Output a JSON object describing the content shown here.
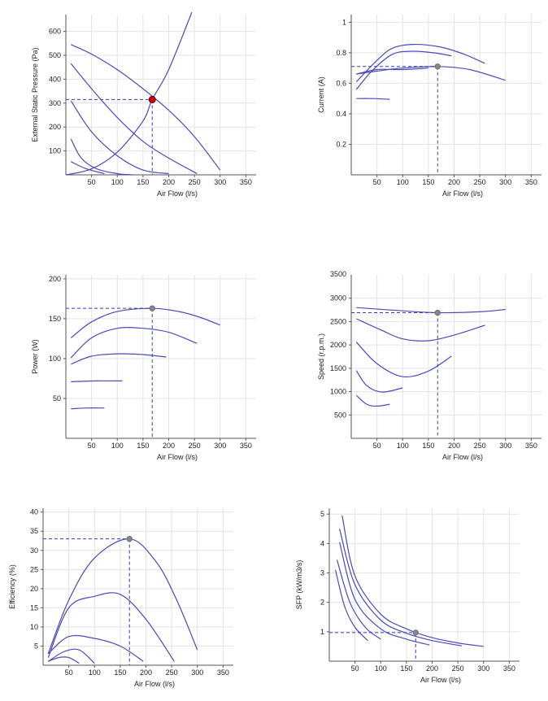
{
  "colors": {
    "curve": "#4a4ab8",
    "guide": "#2f3fbf",
    "grid": "#e4e4e4",
    "operating_point": "#d40000",
    "marker": "#888888"
  },
  "chart_data": [
    {
      "type": "line",
      "xlabel": "Air Flow (l/s)",
      "ylabel": "External Static Pressure (Pa)",
      "xlim": [
        0,
        370
      ],
      "ylim": [
        0,
        670
      ],
      "xticks": [
        50,
        100,
        150,
        200,
        250,
        300,
        350
      ],
      "yticks": [
        100,
        200,
        300,
        400,
        500,
        600
      ],
      "grid": true,
      "series": [
        {
          "values": [
            [
              10,
              545
            ],
            [
              50,
              505
            ],
            [
              100,
              440
            ],
            [
              150,
              360
            ],
            [
              200,
              270
            ],
            [
              250,
              160
            ],
            [
              300,
              20
            ]
          ]
        },
        {
          "values": [
            [
              10,
              465
            ],
            [
              50,
              360
            ],
            [
              100,
              240
            ],
            [
              150,
              140
            ],
            [
              200,
              70
            ],
            [
              255,
              5
            ]
          ]
        },
        {
          "values": [
            [
              10,
              310
            ],
            [
              50,
              180
            ],
            [
              100,
              80
            ],
            [
              150,
              20
            ],
            [
              200,
              5
            ]
          ]
        },
        {
          "values": [
            [
              10,
              150
            ],
            [
              30,
              70
            ],
            [
              60,
              25
            ],
            [
              100,
              5
            ],
            [
              130,
              0
            ]
          ]
        },
        {
          "values": [
            [
              10,
              55
            ],
            [
              40,
              25
            ],
            [
              75,
              5
            ]
          ]
        },
        {
          "values": [
            [
              0,
              0
            ],
            [
              50,
              25
            ],
            [
              100,
              95
            ],
            [
              150,
              225
            ],
            [
              168,
              315
            ],
            [
              200,
              440
            ],
            [
              245,
              680
            ]
          ]
        }
      ],
      "operating_point": {
        "x": 168,
        "y": 315,
        "style": "red"
      }
    },
    {
      "type": "line",
      "xlabel": "Air Flow (l/s)",
      "ylabel": "Current (A)",
      "xlim": [
        0,
        370
      ],
      "ylim": [
        0,
        1.05
      ],
      "xticks": [
        50,
        100,
        150,
        200,
        250,
        300,
        350
      ],
      "yticks": [
        0.2,
        0.4,
        0.6,
        0.8,
        1
      ],
      "grid": true,
      "series": [
        {
          "values": [
            [
              10,
              0.61
            ],
            [
              50,
              0.75
            ],
            [
              80,
              0.83
            ],
            [
              120,
              0.855
            ],
            [
              170,
              0.84
            ],
            [
              220,
              0.79
            ],
            [
              260,
              0.73
            ]
          ]
        },
        {
          "values": [
            [
              10,
              0.56
            ],
            [
              40,
              0.68
            ],
            [
              80,
              0.79
            ],
            [
              120,
              0.81
            ],
            [
              160,
              0.8
            ],
            [
              195,
              0.78
            ]
          ]
        },
        {
          "values": [
            [
              10,
              0.66
            ],
            [
              50,
              0.68
            ],
            [
              100,
              0.7
            ],
            [
              168,
              0.71
            ],
            [
              230,
              0.69
            ],
            [
              300,
              0.62
            ]
          ]
        },
        {
          "values": [
            [
              10,
              0.66
            ],
            [
              50,
              0.69
            ],
            [
              100,
              0.69
            ],
            [
              150,
              0.7
            ]
          ]
        },
        {
          "values": [
            [
              10,
              0.5
            ],
            [
              40,
              0.5
            ],
            [
              75,
              0.495
            ]
          ]
        }
      ],
      "operating_point": {
        "x": 168,
        "y": 0.71,
        "style": "grey"
      }
    },
    {
      "type": "line",
      "xlabel": "Air Flow (l/s)",
      "ylabel": "Power (W)",
      "xlim": [
        0,
        370
      ],
      "ylim": [
        0,
        205
      ],
      "xticks": [
        50,
        100,
        150,
        200,
        250,
        300,
        350
      ],
      "yticks": [
        50,
        100,
        150,
        200
      ],
      "grid": true,
      "series": [
        {
          "values": [
            [
              10,
              126
            ],
            [
              50,
              146
            ],
            [
              100,
              159
            ],
            [
              168,
              163
            ],
            [
              220,
              159
            ],
            [
              260,
              152
            ],
            [
              300,
              142
            ]
          ]
        },
        {
          "values": [
            [
              10,
              101
            ],
            [
              50,
              126
            ],
            [
              100,
              138
            ],
            [
              150,
              138
            ],
            [
              200,
              133
            ],
            [
              255,
              119
            ]
          ]
        },
        {
          "values": [
            [
              10,
              93
            ],
            [
              50,
              103
            ],
            [
              100,
              106
            ],
            [
              150,
              105
            ],
            [
              195,
              102
            ]
          ]
        },
        {
          "values": [
            [
              10,
              71
            ],
            [
              60,
              72
            ],
            [
              110,
              72
            ]
          ]
        },
        {
          "values": [
            [
              10,
              37
            ],
            [
              40,
              38
            ],
            [
              75,
              38
            ]
          ]
        }
      ],
      "operating_point": {
        "x": 168,
        "y": 163,
        "style": "grey"
      }
    },
    {
      "type": "line",
      "xlabel": "Air Flow (l/s)",
      "ylabel": "Speed (r.p.m.)",
      "xlim": [
        0,
        370
      ],
      "ylim": [
        0,
        3500
      ],
      "xticks": [
        50,
        100,
        150,
        200,
        250,
        300,
        350
      ],
      "yticks": [
        500,
        1000,
        1500,
        2000,
        2500,
        3000
      ],
      "top_tick_partial": "3500",
      "grid": true,
      "series": [
        {
          "values": [
            [
              10,
              2800
            ],
            [
              100,
              2730
            ],
            [
              168,
              2690
            ],
            [
              250,
              2710
            ],
            [
              300,
              2760
            ]
          ]
        },
        {
          "values": [
            [
              10,
              2560
            ],
            [
              60,
              2310
            ],
            [
              100,
              2130
            ],
            [
              150,
              2090
            ],
            [
              200,
              2210
            ],
            [
              260,
              2420
            ]
          ]
        },
        {
          "values": [
            [
              10,
              2060
            ],
            [
              50,
              1600
            ],
            [
              100,
              1320
            ],
            [
              150,
              1440
            ],
            [
              195,
              1760
            ]
          ]
        },
        {
          "values": [
            [
              10,
              1450
            ],
            [
              30,
              1130
            ],
            [
              60,
              990
            ],
            [
              100,
              1080
            ]
          ]
        },
        {
          "values": [
            [
              10,
              920
            ],
            [
              30,
              730
            ],
            [
              50,
              690
            ],
            [
              75,
              730
            ]
          ]
        }
      ],
      "operating_point": {
        "x": 168,
        "y": 2690,
        "style": "grey"
      }
    },
    {
      "type": "line",
      "xlabel": "Air Flow (l/s)",
      "ylabel": "Efficiency (%)",
      "xlim": [
        0,
        370
      ],
      "ylim": [
        0,
        41
      ],
      "xticks": [
        50,
        100,
        150,
        200,
        250,
        300,
        350
      ],
      "yticks": [
        5,
        10,
        15,
        20,
        25,
        30,
        35,
        40
      ],
      "grid": true,
      "series": [
        {
          "values": [
            [
              10,
              3
            ],
            [
              50,
              17
            ],
            [
              100,
              28
            ],
            [
              168,
              33
            ],
            [
              220,
              27
            ],
            [
              260,
              17
            ],
            [
              300,
              4
            ]
          ]
        },
        {
          "values": [
            [
              10,
              2
            ],
            [
              50,
              15
            ],
            [
              100,
              18
            ],
            [
              150,
              18.5
            ],
            [
              200,
              12
            ],
            [
              255,
              1
            ]
          ]
        },
        {
          "values": [
            [
              10,
              3
            ],
            [
              50,
              7.5
            ],
            [
              100,
              7
            ],
            [
              150,
              5
            ],
            [
              195,
              1
            ]
          ]
        },
        {
          "values": [
            [
              10,
              1
            ],
            [
              40,
              3.5
            ],
            [
              70,
              4
            ],
            [
              100,
              0.5
            ]
          ]
        },
        {
          "values": [
            [
              10,
              1
            ],
            [
              30,
              2
            ],
            [
              50,
              2
            ],
            [
              70,
              0.5
            ]
          ]
        }
      ],
      "operating_point": {
        "x": 168,
        "y": 33,
        "style": "grey"
      }
    },
    {
      "type": "line",
      "xlabel": "Air Flow (l/s)",
      "ylabel": "SFP (kW/m3/s)",
      "xlim": [
        0,
        370
      ],
      "ylim": [
        0,
        5.2
      ],
      "xticks": [
        50,
        100,
        150,
        200,
        250,
        300,
        350
      ],
      "yticks": [
        1,
        2,
        3,
        4,
        5
      ],
      "grid": true,
      "series": [
        {
          "values": [
            [
              25,
              4.95
            ],
            [
              50,
              2.9
            ],
            [
              100,
              1.6
            ],
            [
              150,
              1.1
            ],
            [
              200,
              0.8
            ],
            [
              250,
              0.62
            ],
            [
              300,
              0.5
            ]
          ]
        },
        {
          "values": [
            [
              20,
              4.5
            ],
            [
              50,
              2.6
            ],
            [
              100,
              1.4
            ],
            [
              150,
              0.95
            ],
            [
              200,
              0.7
            ],
            [
              258,
              0.52
            ]
          ]
        },
        {
          "values": [
            [
              20,
              4.05
            ],
            [
              50,
              2.1
            ],
            [
              100,
              1.1
            ],
            [
              150,
              0.75
            ],
            [
              195,
              0.55
            ]
          ]
        },
        {
          "values": [
            [
              15,
              3.45
            ],
            [
              40,
              2.0
            ],
            [
              70,
              1.15
            ],
            [
              100,
              0.75
            ]
          ]
        },
        {
          "values": [
            [
              12,
              3.1
            ],
            [
              30,
              1.85
            ],
            [
              50,
              1.15
            ],
            [
              75,
              0.7
            ]
          ]
        }
      ],
      "operating_point": {
        "x": 168,
        "y": 0.97,
        "style": "grey"
      }
    }
  ]
}
